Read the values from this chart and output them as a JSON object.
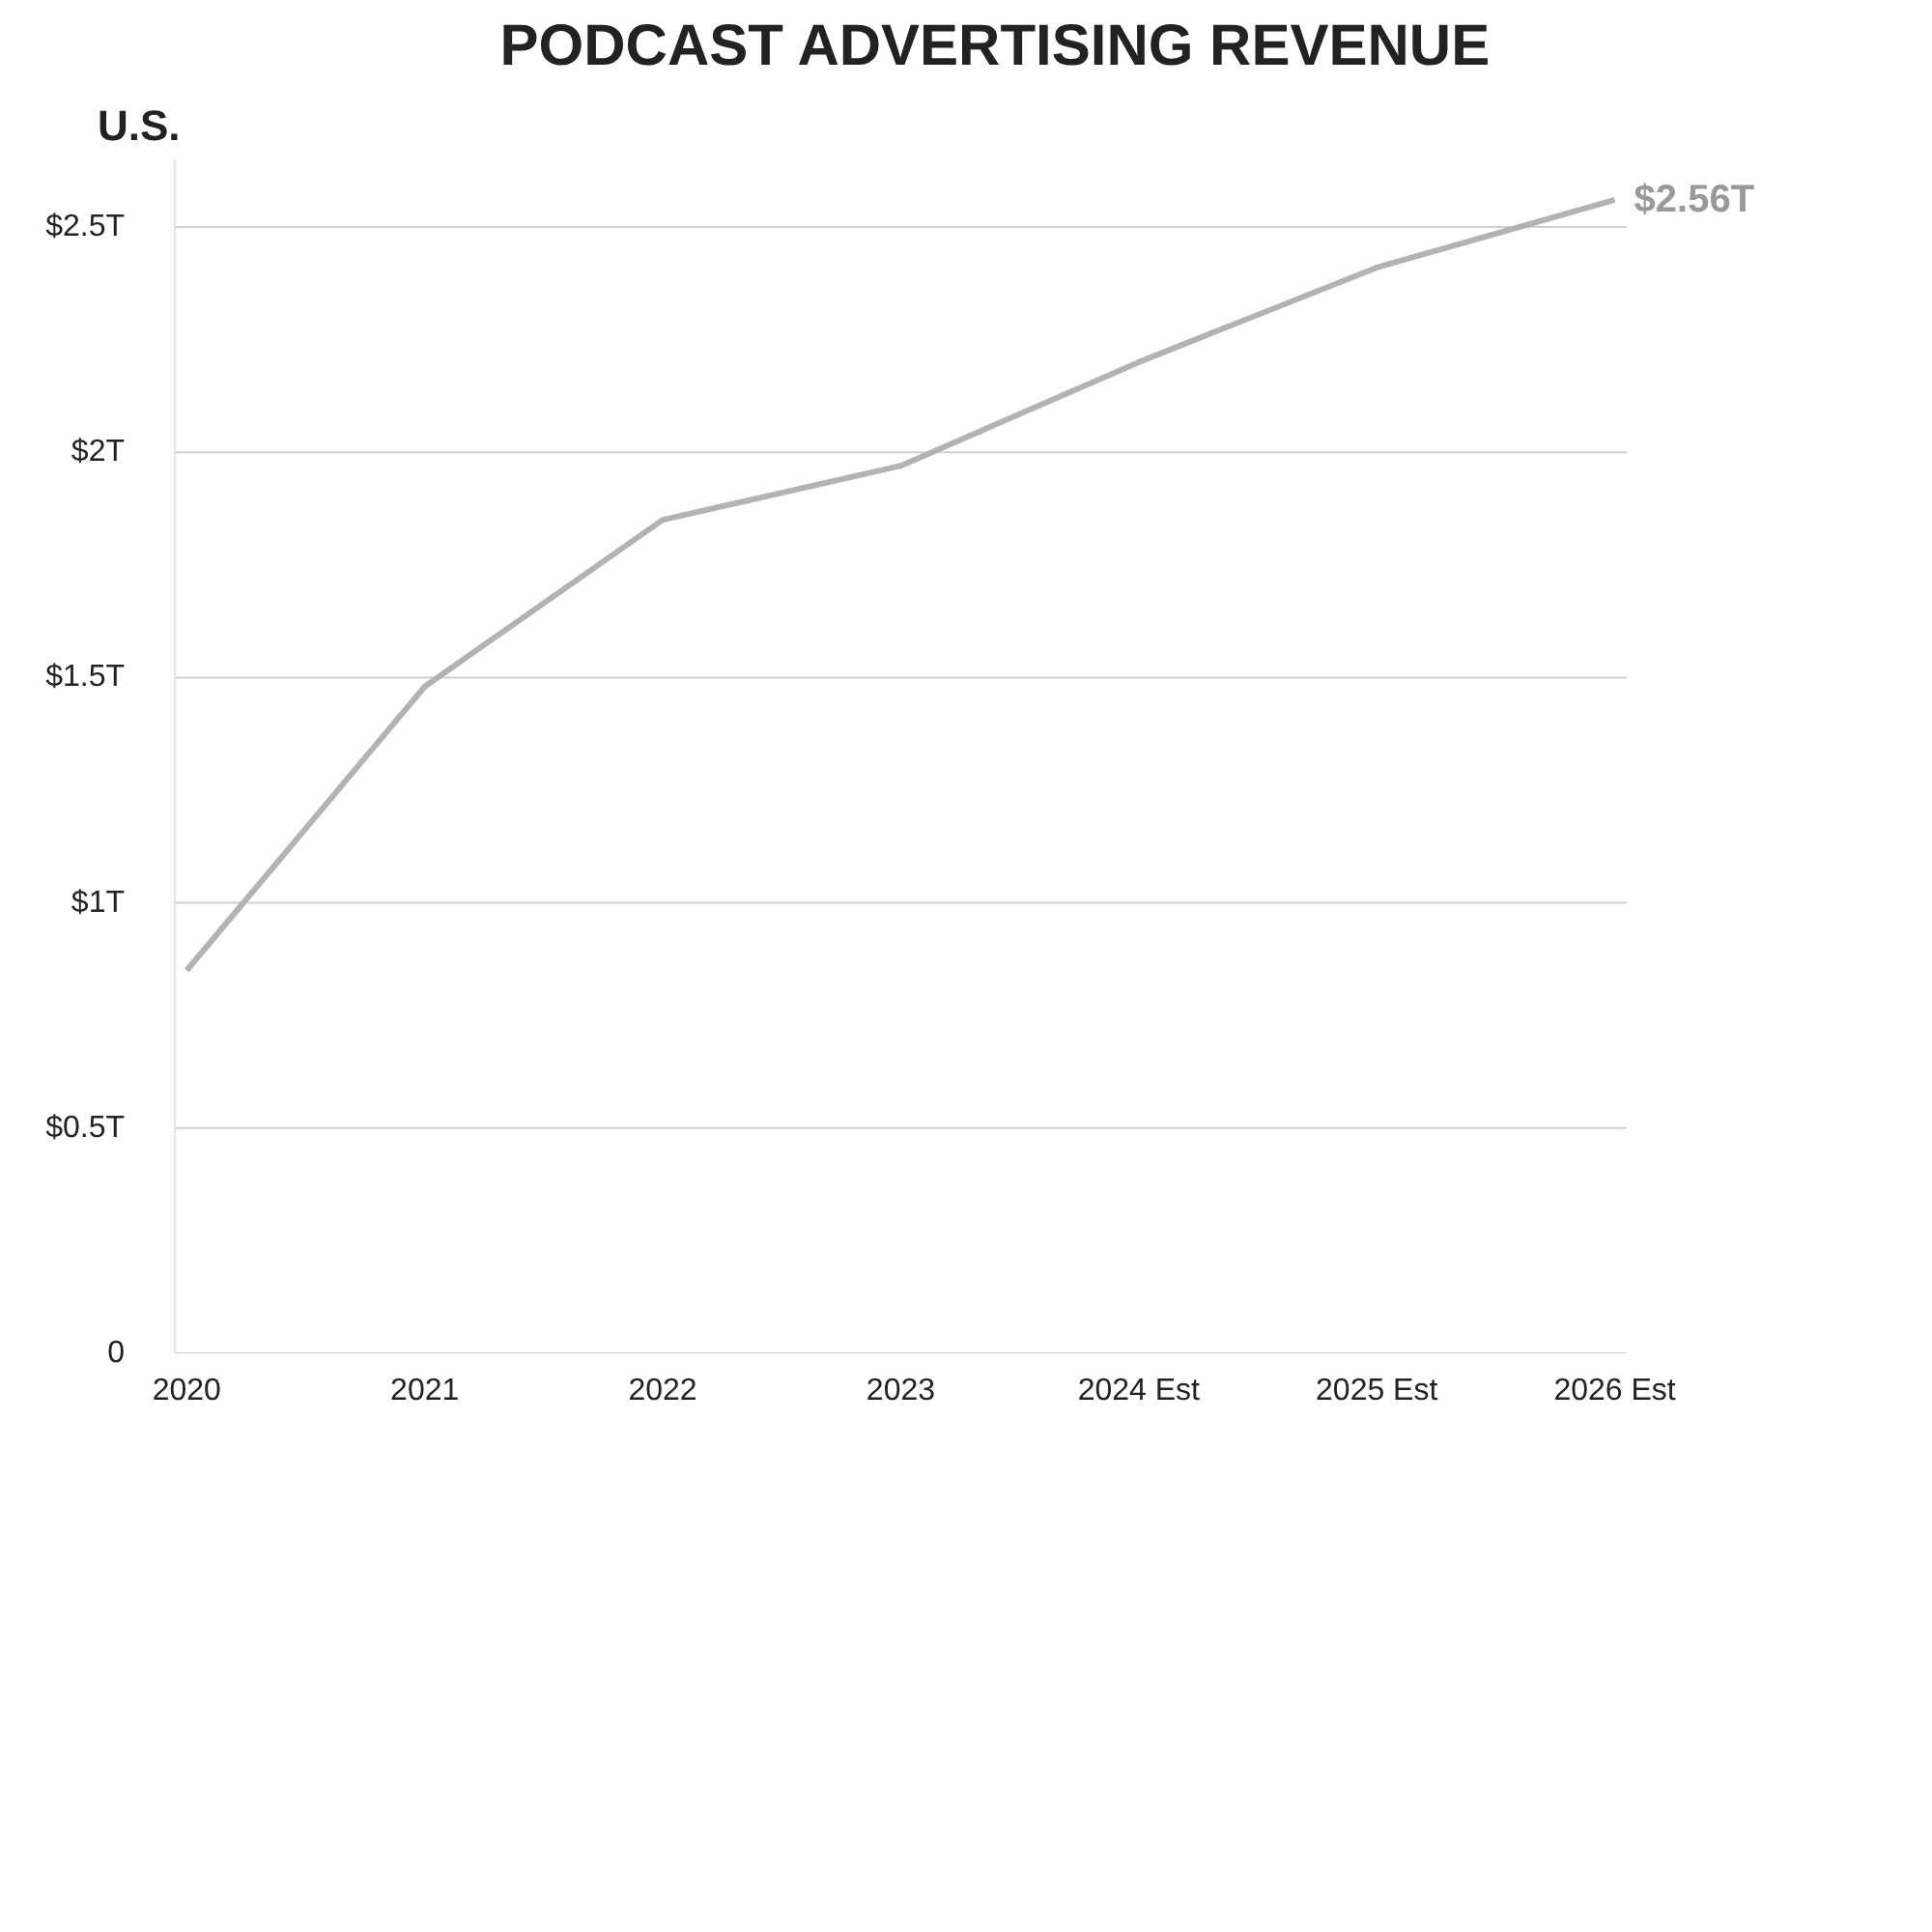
{
  "chart_data": {
    "type": "line",
    "title": "PODCAST ADVERTISING REVENUE",
    "subtitle": "U.S.",
    "categories": [
      "2020",
      "2021",
      "2022",
      "2023",
      "2024 Est",
      "2025 Est",
      "2026 Est"
    ],
    "series": [
      {
        "color": "#b3b3b3",
        "values": [
          0.85,
          1.48,
          1.85,
          1.97,
          2.2,
          2.41,
          2.56
        ],
        "value_labels": [
          null,
          null,
          null,
          null,
          null,
          null,
          "$2.56T"
        ]
      }
    ],
    "ylim": [
      0,
      2.65
    ],
    "yticks": [
      {
        "value": 0,
        "label": "0"
      },
      {
        "value": 0.5,
        "label": "$0.5T"
      },
      {
        "value": 1,
        "label": "$1T"
      },
      {
        "value": 1.5,
        "label": "$1.5T"
      },
      {
        "value": 2,
        "label": "$2T"
      },
      {
        "value": 2.5,
        "label": "$2.5T"
      }
    ],
    "grid": "y",
    "marker": "none",
    "line_style": "solid"
  }
}
